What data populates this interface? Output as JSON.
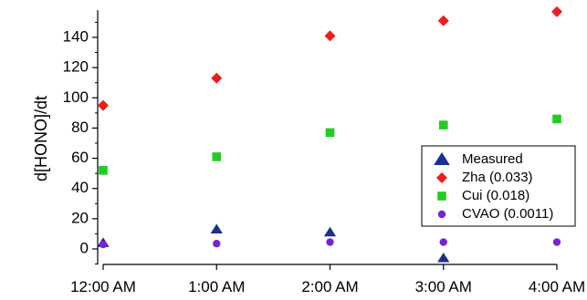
{
  "chart_data": {
    "type": "scatter",
    "title": "",
    "xlabel": "",
    "ylabel": "d[HONO]/dt",
    "categories": [
      "12:00 AM",
      "1:00 AM",
      "2:00 AM",
      "3:00 AM",
      "4:00 AM"
    ],
    "y_ticks": [
      0,
      20,
      40,
      60,
      80,
      100,
      120,
      140
    ],
    "ylim": [
      -10,
      158
    ],
    "grid": false,
    "legend_position": "bottom-right",
    "series": [
      {
        "name": "Measured",
        "marker": "triangle",
        "color": "#1a2f8f",
        "values": [
          4,
          13,
          11,
          -6,
          null
        ]
      },
      {
        "name": "Zha (0.033)",
        "marker": "diamond",
        "color": "#ee1c1c",
        "values": [
          95,
          113,
          141,
          151,
          157
        ]
      },
      {
        "name": "Cui (0.018)",
        "marker": "square",
        "color": "#22cc22",
        "values": [
          52,
          61,
          77,
          82,
          86
        ]
      },
      {
        "name": "CVAO (0.0011)",
        "marker": "circle",
        "color": "#7a22d6",
        "values": [
          3,
          3.5,
          4.5,
          4.5,
          4.5
        ]
      }
    ]
  }
}
